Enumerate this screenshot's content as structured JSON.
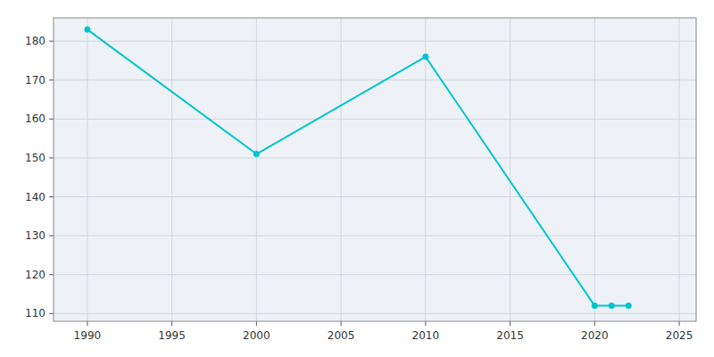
{
  "chart_data": {
    "type": "line",
    "x": [
      1990,
      2000,
      2010,
      2020,
      2021,
      2022
    ],
    "values": [
      183,
      151,
      176,
      112,
      112,
      112
    ],
    "color": "#00C5CD",
    "marker": "circle",
    "xlim": [
      1988,
      2026
    ],
    "ylim": [
      108,
      186
    ],
    "xticks": [
      1990,
      1995,
      2000,
      2005,
      2010,
      2015,
      2020,
      2025
    ],
    "yticks": [
      110,
      120,
      130,
      140,
      150,
      160,
      170,
      180
    ],
    "grid": true
  }
}
